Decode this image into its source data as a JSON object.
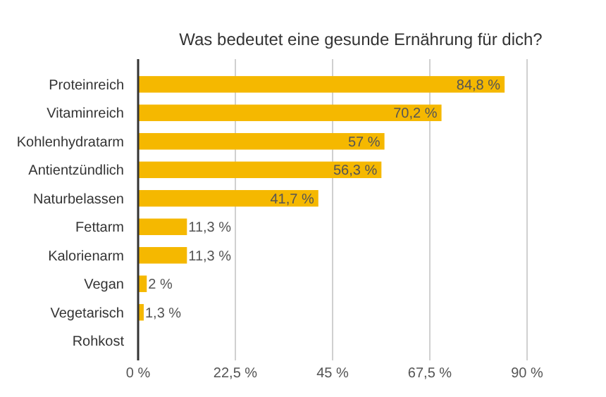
{
  "chart_data": {
    "type": "bar",
    "orientation": "horizontal",
    "title": "Was bedeutet eine gesunde Ernährung für dich?",
    "categories": [
      "Proteinreich",
      "Vitaminreich",
      "Kohlenhydratarm",
      "Antientzündlich",
      "Naturbelassen",
      "Fettarm",
      "Kalorienarm",
      "Vegan",
      "Vegetarisch",
      "Rohkost"
    ],
    "values": [
      84.8,
      70.2,
      57,
      56.3,
      41.7,
      11.3,
      11.3,
      2,
      1.3,
      0
    ],
    "value_labels": [
      "84,8 %",
      "70,2 %",
      "57 %",
      "56,3 %",
      "41,7 %",
      "11,3 %",
      "11,3 %",
      "2 %",
      "1,3 %",
      null
    ],
    "color": "#f5b800",
    "xlim": [
      0,
      90
    ],
    "xticks": [
      {
        "value": 0,
        "label": "0 %"
      },
      {
        "value": 22.5,
        "label": "22,5 %"
      },
      {
        "value": 45,
        "label": "45 %"
      },
      {
        "value": 67.5,
        "label": "67,5 %"
      },
      {
        "value": 90,
        "label": "90 %"
      }
    ],
    "grid": "x"
  }
}
